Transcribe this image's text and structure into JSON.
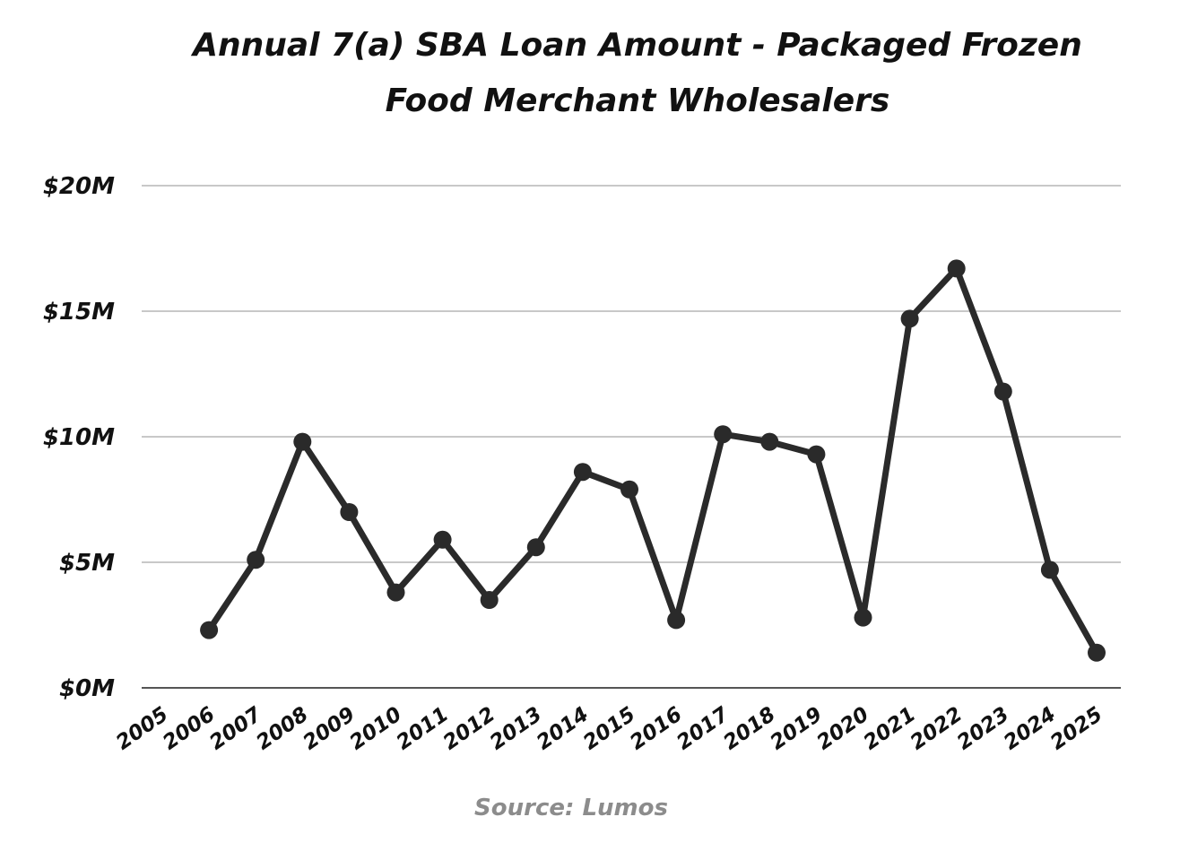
{
  "chart_data": {
    "type": "line",
    "title_lines": [
      "Annual 7(a) SBA Loan Amount - Packaged Frozen",
      "Food Merchant Wholesalers"
    ],
    "source": "Source: Lumos",
    "x": [
      "2005",
      "2006",
      "2007",
      "2008",
      "2009",
      "2010",
      "2011",
      "2012",
      "2013",
      "2014",
      "2015",
      "2016",
      "2017",
      "2018",
      "2019",
      "2020",
      "2021",
      "2022",
      "2023",
      "2024",
      "2025"
    ],
    "series": [
      {
        "values": [
          null,
          2.3,
          5.1,
          9.8,
          7.0,
          3.8,
          5.9,
          3.5,
          5.6,
          8.6,
          7.9,
          2.7,
          10.1,
          9.8,
          9.3,
          2.8,
          14.7,
          16.7,
          11.8,
          4.7,
          1.4
        ]
      }
    ],
    "ylim": [
      0,
      20
    ],
    "yticks": [
      0,
      5,
      10,
      15,
      20
    ],
    "ytick_labels": [
      "$0M",
      "$5M",
      "$10M",
      "$15M",
      "$20M"
    ],
    "grid": true,
    "line_color": "#2a2a2a",
    "grid_color": "#c8c8c8",
    "axis_color": "#555555",
    "source_color": "#8c8c8c"
  }
}
